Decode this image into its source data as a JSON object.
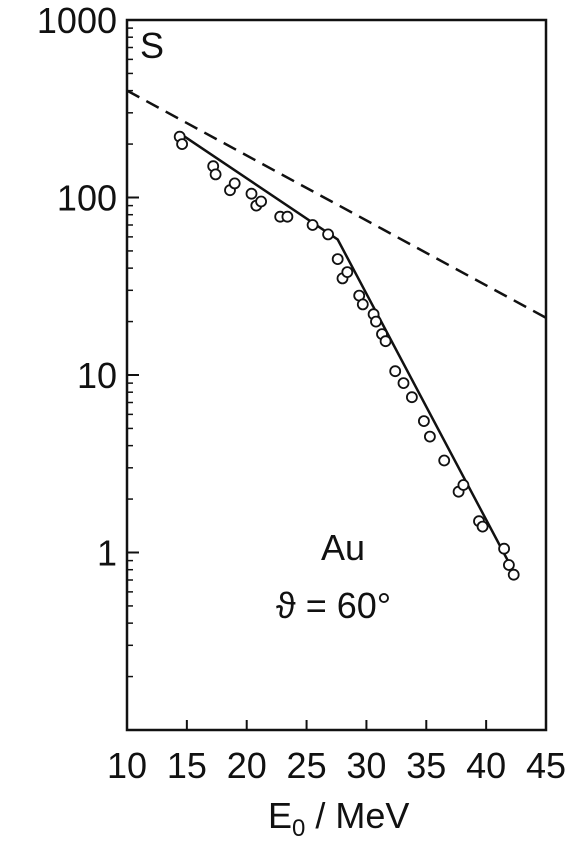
{
  "chart_data": {
    "type": "scatter",
    "title": "",
    "xlabel": {
      "main": "E",
      "sub": "0",
      "unit": " / MeV"
    },
    "ylabel": "",
    "corner_label": "S",
    "annotations": [
      "Au",
      "ϑ = 60°"
    ],
    "xlim": [
      10,
      45
    ],
    "ylim": [
      0.1,
      1000
    ],
    "yscale": "log",
    "grid": false,
    "legend": "none",
    "x_ticks": [
      10,
      15,
      20,
      25,
      30,
      35,
      40,
      45
    ],
    "x_tick_labels": [
      "10",
      "15",
      "20",
      "25",
      "30",
      "35",
      "40",
      "45"
    ],
    "y_ticks": [
      1,
      10,
      100,
      1000
    ],
    "y_tick_labels": [
      "1",
      "10",
      "100",
      "1000"
    ],
    "series": [
      {
        "kind": "markers",
        "marker": "open-circle",
        "x": [
          14.4,
          14.6,
          17.2,
          17.4,
          18.6,
          19.0,
          20.4,
          20.8,
          21.2,
          22.8,
          23.4,
          25.5,
          26.8,
          27.6,
          28.0,
          28.4,
          29.4,
          29.7,
          30.6,
          30.8,
          31.3,
          31.6,
          32.4,
          33.1,
          33.8,
          34.8,
          35.3,
          36.5,
          37.7,
          38.1,
          39.4,
          39.7,
          41.5,
          41.9,
          42.3
        ],
        "y": [
          220,
          200,
          150,
          135,
          110,
          120,
          105,
          90,
          95,
          78,
          78,
          70,
          62,
          45,
          35,
          38,
          28,
          25,
          22,
          20,
          17,
          15.5,
          10.5,
          9,
          7.5,
          5.5,
          4.5,
          3.3,
          2.2,
          2.4,
          1.5,
          1.4,
          1.05,
          0.85,
          0.75
        ]
      },
      {
        "kind": "solid-line",
        "x": [
          14.4,
          27.6,
          42.3
        ],
        "y": [
          230,
          58,
          0.78
        ]
      },
      {
        "kind": "dashed-line",
        "x": [
          10,
          45
        ],
        "y": [
          400,
          21
        ]
      }
    ],
    "colors": {
      "ink": "#111111"
    }
  }
}
